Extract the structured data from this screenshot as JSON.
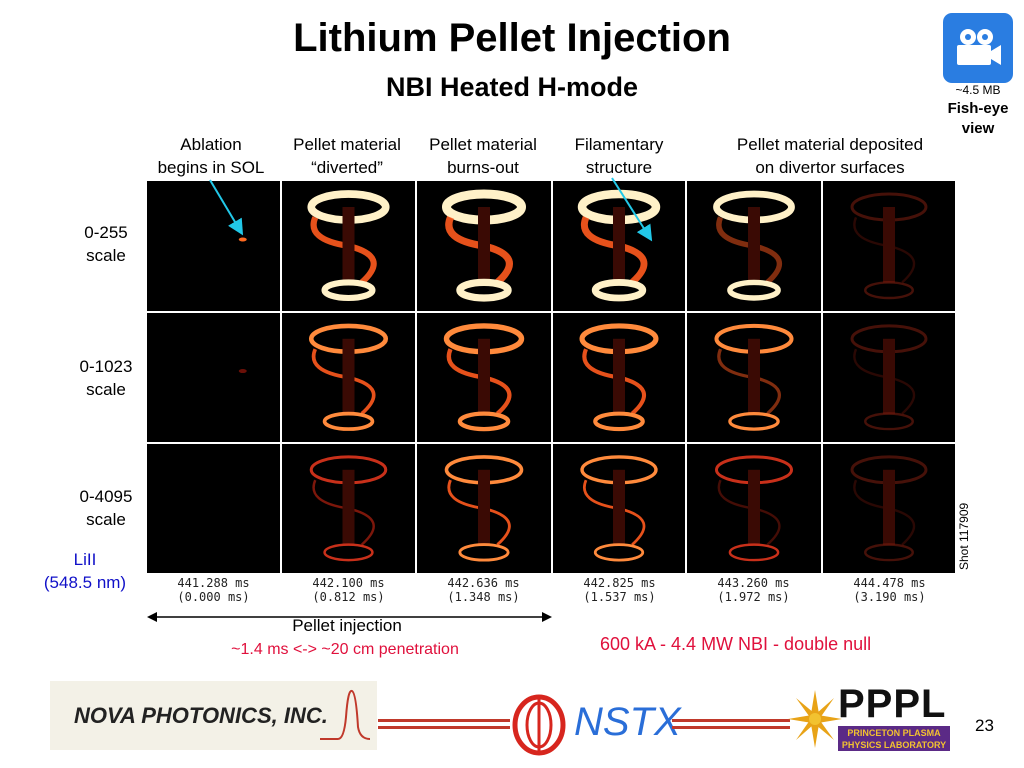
{
  "slide": {
    "title": "Lithium Pellet Injection",
    "subtitle": "NBI Heated H-mode",
    "page_number": "23"
  },
  "video": {
    "icon": "movie-camera-icon",
    "size": "~4.5 MB",
    "caption_line1": "Fish-eye",
    "caption_line2": "view"
  },
  "columns": [
    {
      "line1": "Ablation",
      "line2": "begins in SOL",
      "time": "441.288 ms",
      "delta": "(0.000 ms)"
    },
    {
      "line1": "Pellet material",
      "line2": "“diverted”",
      "time": "442.100 ms",
      "delta": "(0.812 ms)"
    },
    {
      "line1": "Pellet material",
      "line2": "burns-out",
      "time": "442.636 ms",
      "delta": "(1.348 ms)"
    },
    {
      "line1": "Filamentary",
      "line2": "structure",
      "time": "442.825 ms",
      "delta": "(1.537 ms)"
    },
    {
      "line1": "Pellet material deposited",
      "line2": "on divertor surfaces",
      "time": "443.260 ms",
      "delta": "(1.972 ms)"
    },
    {
      "line1": "",
      "line2": "",
      "time": "444.478 ms",
      "delta": "(3.190 ms)"
    }
  ],
  "rows": [
    {
      "line1": "0-255",
      "line2": "scale"
    },
    {
      "line1": "0-1023",
      "line2": "scale"
    },
    {
      "line1": "0-4095",
      "line2": "scale"
    }
  ],
  "emission": {
    "line1": "LiII",
    "line2": "(548.5 nm)"
  },
  "shot": "Shot 117909",
  "pellet_injection": "Pellet injection",
  "penetration": "~1.4 ms <-> ~20 cm penetration",
  "conditions": "600 kA - 4.4 MW NBI - double null",
  "logos": {
    "nova": "NOVA PHOTONICS, INC.",
    "nstx": "NSTX",
    "pppl": "PPPL",
    "pppl_line1": "PRINCETON PLASMA",
    "pppl_line2": "PHYSICS LABORATORY"
  },
  "colors": {
    "accent_red": "#e0103c",
    "label_blue": "#1010c8",
    "camera_blue": "#2a7de1",
    "arrow_cyan": "#22c8e8"
  }
}
